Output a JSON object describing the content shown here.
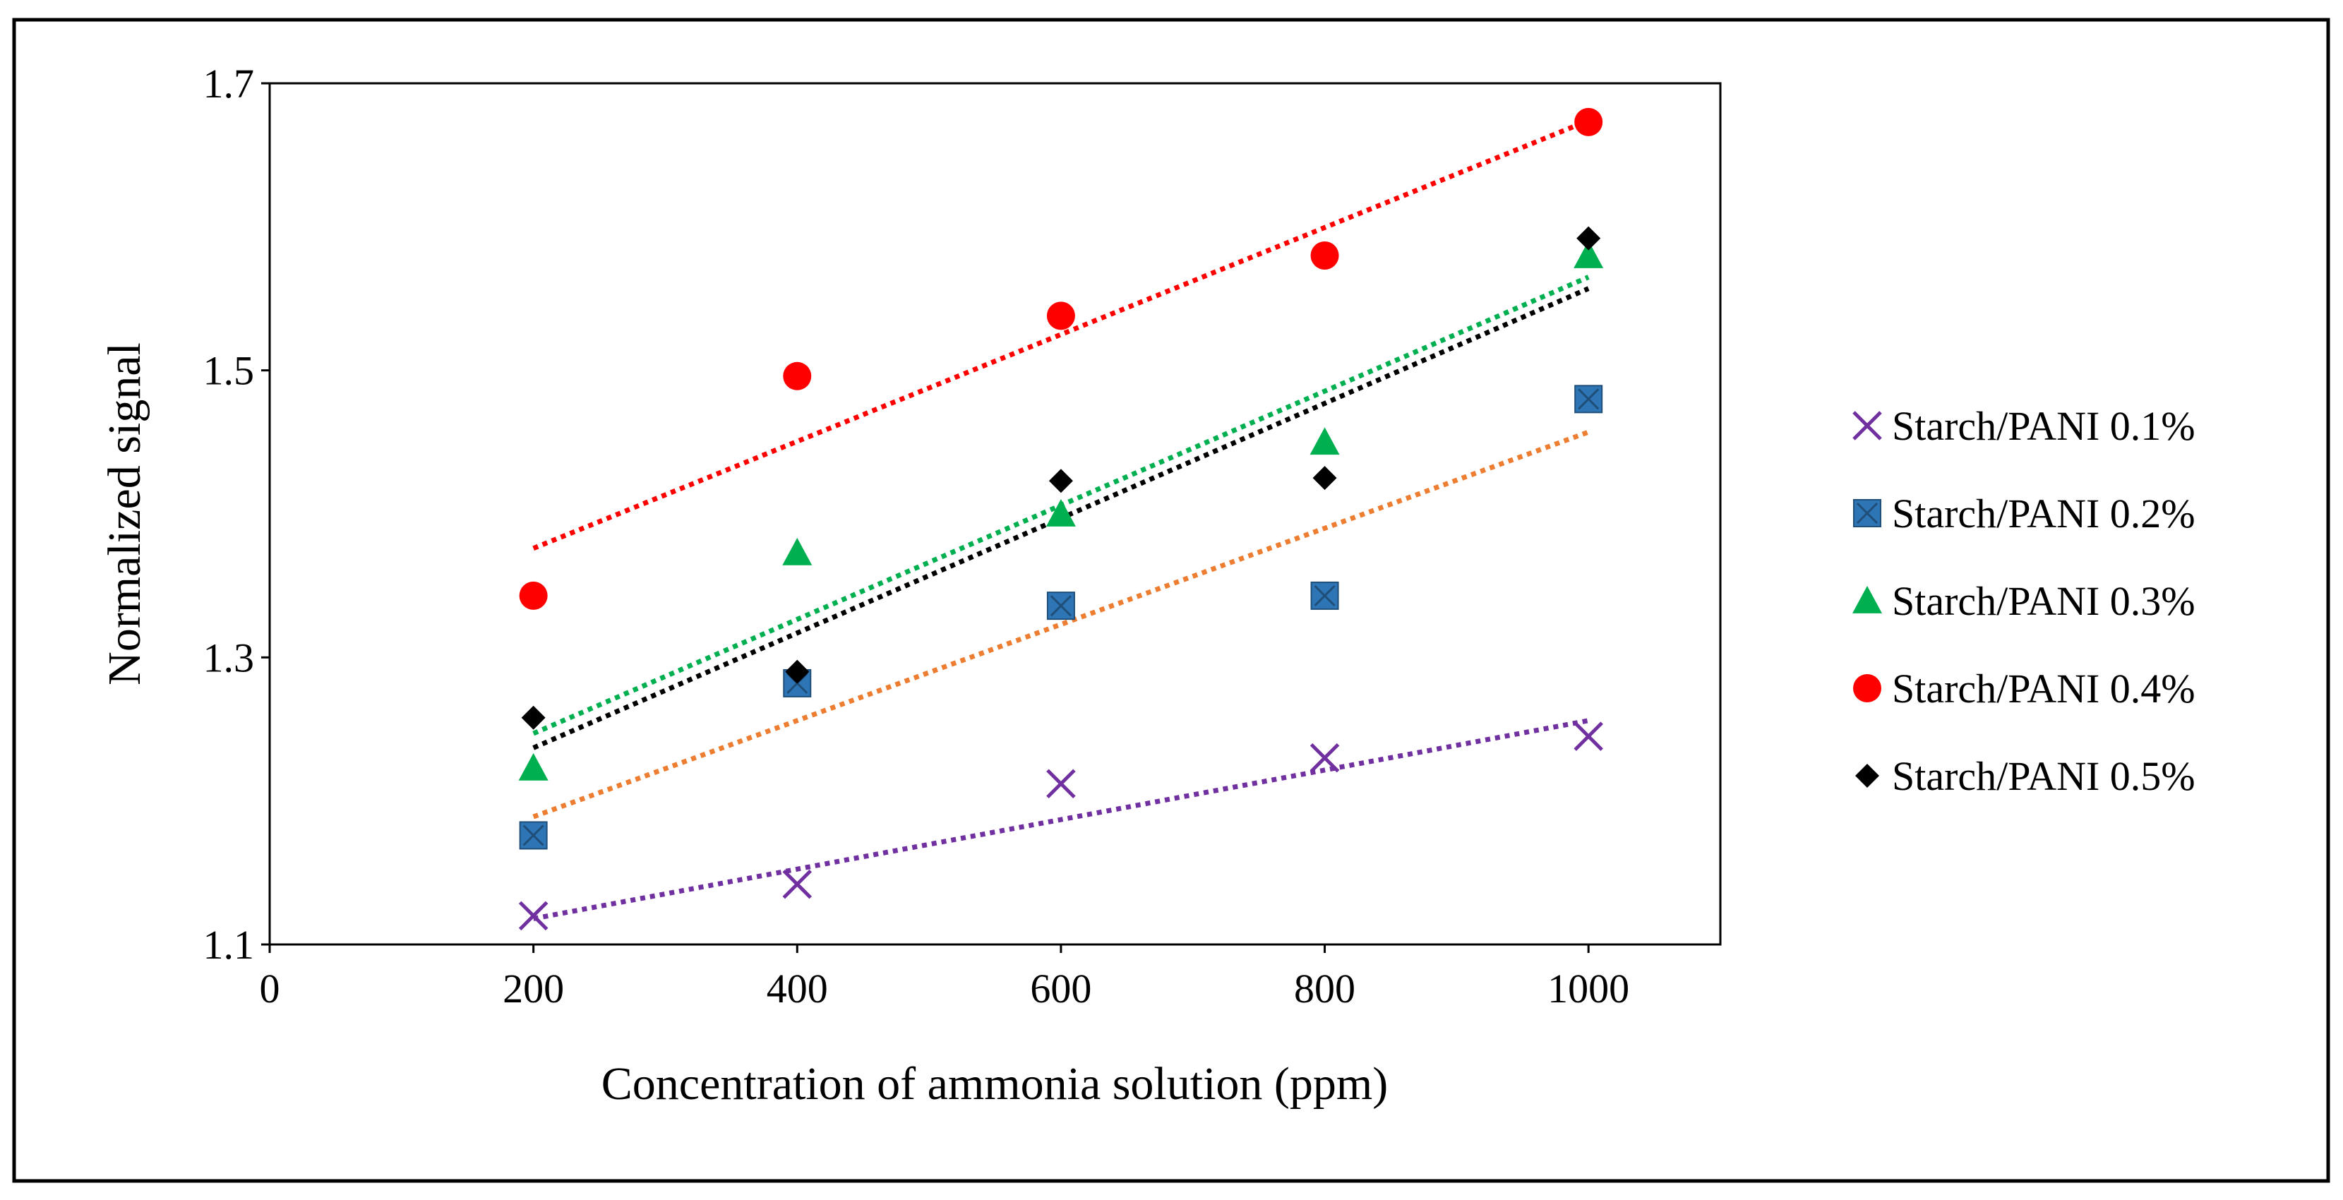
{
  "chart_data": {
    "type": "scatter",
    "title": "",
    "xlabel": "Concentration of ammonia solution (ppm)",
    "ylabel": "Normalized signal",
    "xlim": [
      0,
      1100
    ],
    "ylim": [
      1.1,
      1.7
    ],
    "xticks": [
      0,
      200,
      400,
      600,
      800,
      1000
    ],
    "xtick_labels": [
      "0",
      "200",
      "400",
      "600",
      "800",
      "1000"
    ],
    "yticks": [
      1.1,
      1.3,
      1.5,
      1.7
    ],
    "ytick_labels": [
      "1.1",
      "1.3",
      "1.5",
      "1.7"
    ],
    "grid": false,
    "legend_position": "right",
    "x": [
      200,
      400,
      600,
      800,
      1000
    ],
    "series": [
      {
        "name": "Starch/PANI 0.1%",
        "marker": "x",
        "color": "#7030A0",
        "trend_color": "#7030A0",
        "values": [
          1.12,
          1.142,
          1.212,
          1.23,
          1.245
        ],
        "trendline": [
          1.118,
          1.256
        ]
      },
      {
        "name": "Starch/PANI 0.2%",
        "marker": "square",
        "color": "#2E75B6",
        "trend_color": "#ED7D31",
        "values": [
          1.176,
          1.282,
          1.336,
          1.343,
          1.48
        ],
        "trendline": [
          1.189,
          1.457
        ]
      },
      {
        "name": "Starch/PANI 0.3%",
        "marker": "triangle",
        "color": "#00B050",
        "trend_color": "#00B050",
        "values": [
          1.223,
          1.373,
          1.4,
          1.45,
          1.58
        ],
        "trendline": [
          1.247,
          1.565
        ]
      },
      {
        "name": "Starch/PANI 0.4%",
        "marker": "circle",
        "color": "#FF0000",
        "trend_color": "#FF0000",
        "values": [
          1.343,
          1.496,
          1.538,
          1.58,
          1.673
        ],
        "trendline": [
          1.376,
          1.674
        ]
      },
      {
        "name": "Starch/PANI 0.5%",
        "marker": "diamond",
        "color": "#000000",
        "trend_color": "#000000",
        "values": [
          1.258,
          1.29,
          1.423,
          1.425,
          1.592
        ],
        "trendline": [
          1.237,
          1.557
        ]
      }
    ]
  }
}
